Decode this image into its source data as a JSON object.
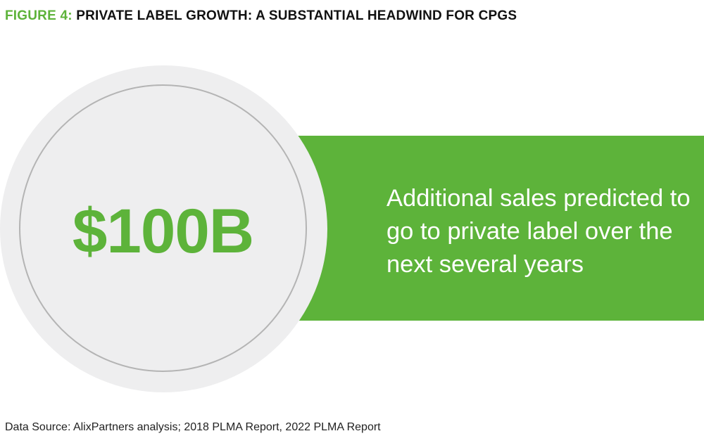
{
  "header": {
    "figure_number": "FIGURE 4:",
    "title": "PRIVATE LABEL GROWTH: A SUBSTANTIAL HEADWIND FOR CPGS"
  },
  "callout": {
    "value": "$100B",
    "description": "Additional sales predicted to go to private label over the next several years"
  },
  "footer": {
    "source": "Data Source: AlixPartners analysis; 2018 PLMA Report, 2022 PLMA Report"
  },
  "colors": {
    "accent_green": "#5db33a",
    "circle_fill": "#eeeeef",
    "circle_ring": "#b4b4b4"
  }
}
